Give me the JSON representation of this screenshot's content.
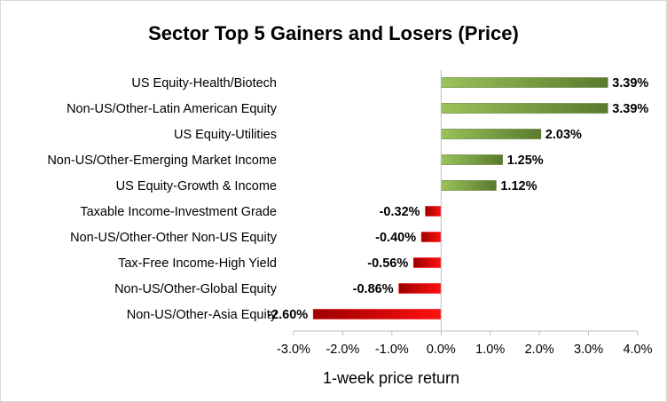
{
  "chart_data": {
    "type": "bar",
    "orientation": "horizontal",
    "title": "Sector Top 5 Gainers and Losers (Price)",
    "xlabel": "1-week price return",
    "ylabel": "",
    "categories": [
      "US Equity-Health/Biotech",
      "Non-US/Other-Latin American Equity",
      "US Equity-Utilities",
      "Non-US/Other-Emerging Market Income",
      "US Equity-Growth & Income",
      "Taxable Income-Investment Grade",
      "Non-US/Other-Other Non-US Equity",
      "Tax-Free Income-High Yield",
      "Non-US/Other-Global Equity",
      "Non-US/Other-Asia Equity"
    ],
    "values": [
      3.39,
      3.39,
      2.03,
      1.25,
      1.12,
      -0.32,
      -0.4,
      -0.56,
      -0.86,
      -2.6
    ],
    "data_labels": [
      "3.39%",
      "3.39%",
      "2.03%",
      "1.25%",
      "1.12%",
      "-0.32%",
      "-0.40%",
      "-0.56%",
      "-0.86%",
      "-2.60%"
    ],
    "xlim": [
      -3.0,
      4.0
    ],
    "xticks": [
      -3.0,
      -2.0,
      -1.0,
      0.0,
      1.0,
      2.0,
      3.0,
      4.0
    ],
    "xtick_labels": [
      "-3.0%",
      "-2.0%",
      "-1.0%",
      "0.0%",
      "1.0%",
      "2.0%",
      "3.0%",
      "4.0%"
    ],
    "grid": false,
    "legend": "none",
    "colors": {
      "positive_light": "#9bc25a",
      "positive_dark": "#5a7a2e",
      "negative_light": "#ff1010",
      "negative_dark": "#9a0000",
      "axis": "#bfbfbf"
    }
  }
}
